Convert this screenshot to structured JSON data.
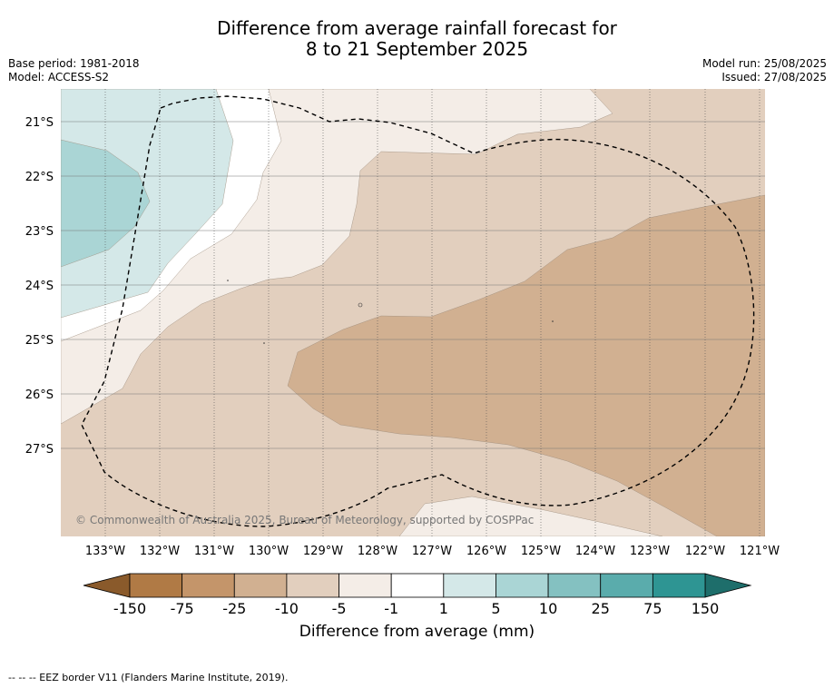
{
  "header": {
    "title_line1": "Difference from average rainfall forecast for",
    "title_line2": "8 to 21 September 2025",
    "base_period": "Base period: 1981-2018",
    "model": "Model: ACCESS-S2",
    "model_run": "Model run: 25/08/2025",
    "issued": "Issued: 27/08/2025"
  },
  "map": {
    "lat_labels": [
      "21°S",
      "22°S",
      "23°S",
      "24°S",
      "25°S",
      "26°S",
      "27°S"
    ],
    "lon_labels": [
      "133°W",
      "132°W",
      "131°W",
      "130°W",
      "129°W",
      "128°W",
      "127°W",
      "126°W",
      "125°W",
      "124°W",
      "123°W",
      "122°W",
      "121°W"
    ],
    "copyright": "© Commonwealth of Australia 2025, Bureau of Meteorology, supported by COSPPac",
    "colors": {
      "neg150": "#8a5a2b",
      "neg75": "#b07a45",
      "neg25": "#c4956a",
      "neg10": "#d1b091",
      "neg5": "#e2cfbe",
      "neg1": "#f4ede7",
      "zero": "#ffffff",
      "pos1": "#d4e8e8",
      "pos5": "#aad5d5",
      "pos10": "#84c1c1",
      "pos25": "#5aacac",
      "pos75": "#2e9593",
      "pos150": "#1e6e6b"
    }
  },
  "colorbar": {
    "ticks": [
      "-150",
      "-75",
      "-25",
      "-10",
      "-5",
      "-1",
      "1",
      "5",
      "10",
      "25",
      "75",
      "150"
    ],
    "label": "Difference from average (mm)"
  },
  "footnote": "-- -- -- EEZ border V11 (Flanders Marine Institute, 2019)."
}
